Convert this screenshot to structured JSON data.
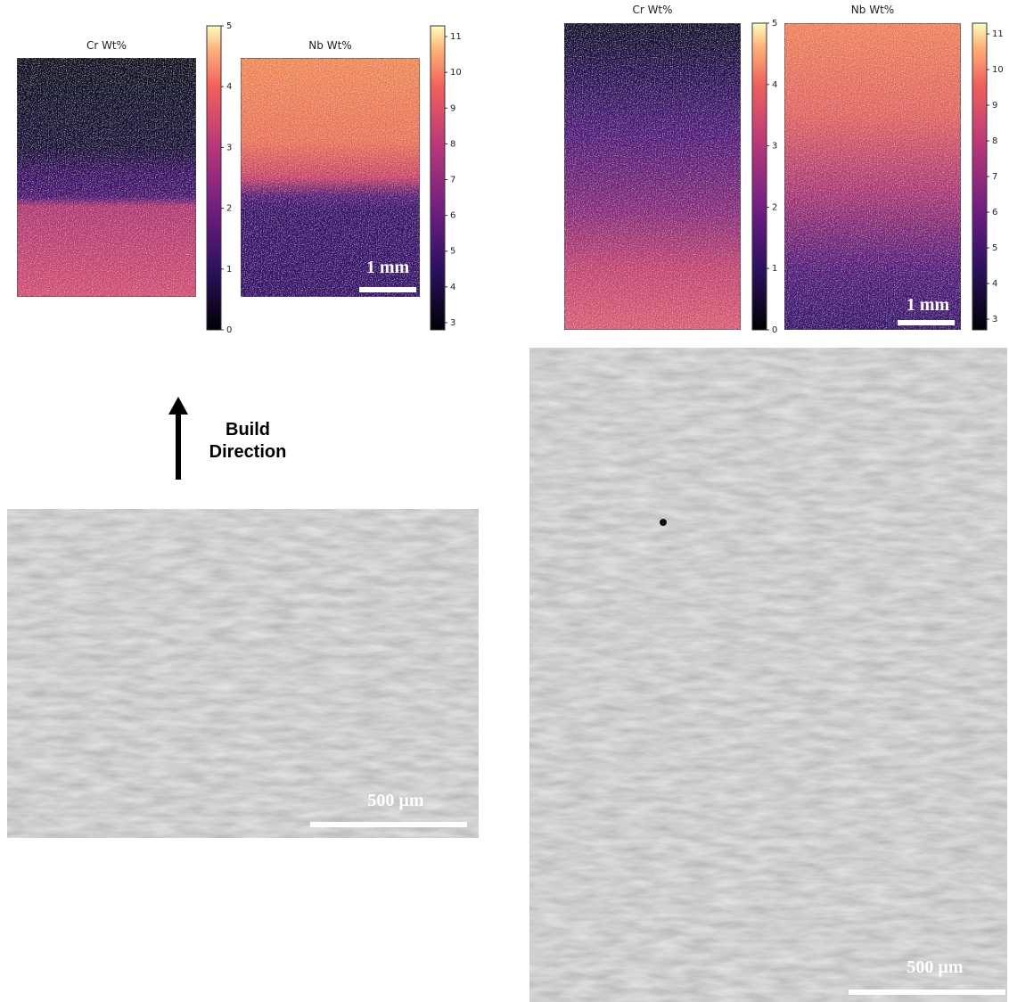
{
  "panels": [
    {
      "maps": [
        {
          "title": "Cr Wt%",
          "colorbar": {
            "range": [
              0,
              5
            ],
            "ticks": [
              0,
              1,
              2,
              3,
              4,
              5
            ]
          }
        },
        {
          "title": "Nb Wt%",
          "colorbar": {
            "range": [
              2.8,
              11.3
            ],
            "ticks": [
              3,
              4,
              5,
              6,
              7,
              8,
              9,
              10,
              11
            ]
          }
        }
      ],
      "map_scale_bar": "1 mm",
      "sem_scale_bar": "500 µm"
    },
    {
      "maps": [
        {
          "title": "Cr Wt%",
          "colorbar": {
            "range": [
              0,
              5
            ],
            "ticks": [
              0,
              1,
              2,
              3,
              4,
              5
            ]
          }
        },
        {
          "title": "Nb Wt%",
          "colorbar": {
            "range": [
              2.7,
              11.3
            ],
            "ticks": [
              3,
              4,
              5,
              6,
              7,
              8,
              9,
              10,
              11
            ]
          }
        }
      ],
      "map_scale_bar": "1 mm",
      "sem_scale_bar": "500 µm"
    }
  ],
  "build_direction": "Build Direction"
}
